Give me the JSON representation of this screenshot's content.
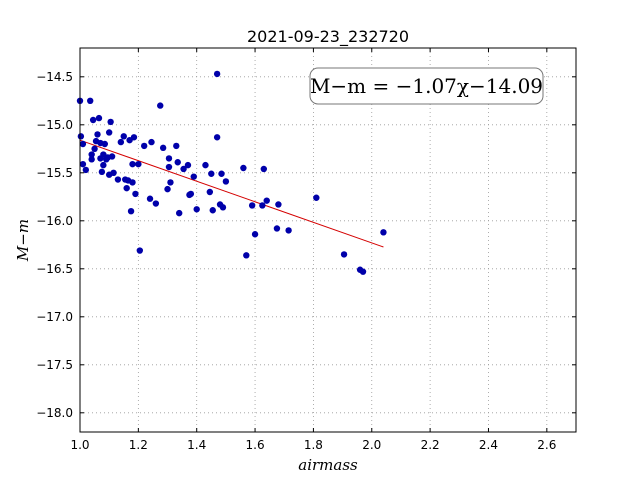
{
  "chart_data": {
    "type": "scatter",
    "title": "2021-09-23_232720",
    "xlabel": "airmass",
    "ylabel": "M−m",
    "xlim": [
      1.0,
      2.7
    ],
    "ylim": [
      -18.2,
      -14.2
    ],
    "y_inverted": true,
    "grid": true,
    "x_ticks": [
      1.0,
      1.2,
      1.4,
      1.6,
      1.8,
      2.0,
      2.2,
      2.4,
      2.6
    ],
    "x_tick_labels": [
      "1.0",
      "1.2",
      "1.4",
      "1.6",
      "1.8",
      "2.0",
      "2.2",
      "2.4",
      "2.6"
    ],
    "y_ticks": [
      -14.5,
      -15.0,
      -15.5,
      -16.0,
      -16.5,
      -17.0,
      -17.5,
      -18.0
    ],
    "y_tick_labels": [
      "−14.5",
      "−15.0",
      "−15.5",
      "−16.0",
      "−16.5",
      "−17.0",
      "−17.5",
      "−18.0"
    ],
    "annotation": "M−m = −1.07χ−14.09",
    "marker_color": "#0000aa",
    "fit_color": "#d40000",
    "fit": {
      "slope": -1.07,
      "intercept": -14.09,
      "x_range": [
        1.0,
        2.04
      ]
    },
    "points": [
      [
        1.0,
        -14.75
      ],
      [
        1.003,
        -15.12
      ],
      [
        1.01,
        -15.2
      ],
      [
        1.01,
        -15.41
      ],
      [
        1.02,
        -15.47
      ],
      [
        1.035,
        -14.75
      ],
      [
        1.04,
        -15.31
      ],
      [
        1.04,
        -15.36
      ],
      [
        1.045,
        -14.95
      ],
      [
        1.05,
        -15.25
      ],
      [
        1.055,
        -15.17
      ],
      [
        1.06,
        -15.1
      ],
      [
        1.065,
        -14.93
      ],
      [
        1.07,
        -15.19
      ],
      [
        1.07,
        -15.35
      ],
      [
        1.075,
        -15.49
      ],
      [
        1.08,
        -15.31
      ],
      [
        1.08,
        -15.42
      ],
      [
        1.085,
        -15.2
      ],
      [
        1.09,
        -15.36
      ],
      [
        1.095,
        -15.34
      ],
      [
        1.1,
        -15.08
      ],
      [
        1.1,
        -15.52
      ],
      [
        1.105,
        -14.97
      ],
      [
        1.11,
        -15.33
      ],
      [
        1.115,
        -15.5
      ],
      [
        1.13,
        -15.57
      ],
      [
        1.14,
        -15.18
      ],
      [
        1.15,
        -15.12
      ],
      [
        1.155,
        -15.57
      ],
      [
        1.16,
        -15.66
      ],
      [
        1.165,
        -15.58
      ],
      [
        1.17,
        -15.16
      ],
      [
        1.175,
        -15.9
      ],
      [
        1.18,
        -15.41
      ],
      [
        1.18,
        -15.6
      ],
      [
        1.185,
        -15.13
      ],
      [
        1.19,
        -15.72
      ],
      [
        1.2,
        -15.41
      ],
      [
        1.205,
        -16.31
      ],
      [
        1.22,
        -15.22
      ],
      [
        1.24,
        -15.77
      ],
      [
        1.245,
        -15.18
      ],
      [
        1.26,
        -15.82
      ],
      [
        1.275,
        -14.8
      ],
      [
        1.285,
        -15.24
      ],
      [
        1.3,
        -15.67
      ],
      [
        1.305,
        -15.44
      ],
      [
        1.305,
        -15.35
      ],
      [
        1.31,
        -15.6
      ],
      [
        1.33,
        -15.22
      ],
      [
        1.335,
        -15.39
      ],
      [
        1.34,
        -15.92
      ],
      [
        1.355,
        -15.46
      ],
      [
        1.37,
        -15.42
      ],
      [
        1.375,
        -15.73
      ],
      [
        1.38,
        -15.72
      ],
      [
        1.39,
        -15.54
      ],
      [
        1.4,
        -15.88
      ],
      [
        1.43,
        -15.42
      ],
      [
        1.445,
        -15.7
      ],
      [
        1.45,
        -15.51
      ],
      [
        1.455,
        -15.89
      ],
      [
        1.47,
        -14.47
      ],
      [
        1.47,
        -15.13
      ],
      [
        1.48,
        -15.83
      ],
      [
        1.485,
        -15.51
      ],
      [
        1.49,
        -15.86
      ],
      [
        1.5,
        -15.59
      ],
      [
        1.56,
        -15.45
      ],
      [
        1.57,
        -16.36
      ],
      [
        1.59,
        -15.84
      ],
      [
        1.6,
        -16.14
      ],
      [
        1.625,
        -15.84
      ],
      [
        1.63,
        -15.46
      ],
      [
        1.64,
        -15.79
      ],
      [
        1.675,
        -16.08
      ],
      [
        1.68,
        -15.83
      ],
      [
        1.715,
        -16.1
      ],
      [
        1.81,
        -15.76
      ],
      [
        1.905,
        -16.35
      ],
      [
        1.96,
        -16.51
      ],
      [
        1.97,
        -16.53
      ],
      [
        2.04,
        -16.12
      ]
    ]
  }
}
